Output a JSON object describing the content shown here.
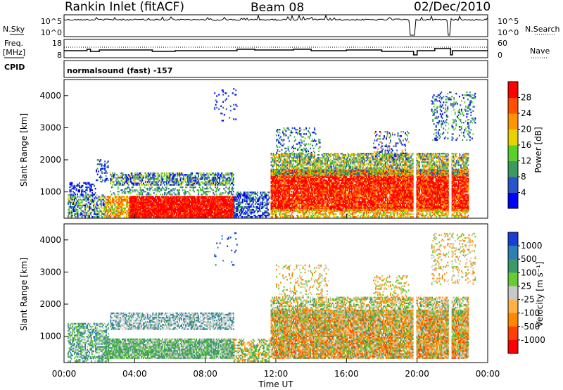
{
  "header": {
    "title": "Rankin Inlet (fitACF)",
    "beam": "Beam 08",
    "date": "02/Dec/2010"
  },
  "noise_panel": {
    "left_label": "N.Sky",
    "right_label": "N.Search",
    "tick_top": "10^5",
    "tick_bottom": "10^0",
    "tick_top_right": "10^5",
    "tick_bottom_right": "10^0"
  },
  "freq_panel": {
    "left_label": "Freq.",
    "left_unit": "[MHz]",
    "right_label": "Nave",
    "left_ticks": [
      "18",
      "8"
    ],
    "right_ticks": [
      "60",
      "0"
    ]
  },
  "cpid": {
    "label": "CPID",
    "text": "normalsound (fast) -157"
  },
  "chart_data": [
    {
      "type": "heatmap",
      "panel": "power",
      "ylabel": "Slant Range [km]",
      "colorbar_label": "Power [dB]",
      "ylim": [
        180,
        4500
      ],
      "y_ticks": [
        "1000",
        "2000",
        "3000",
        "4000"
      ],
      "colorbar_ticks": [
        "4",
        "8",
        "12",
        "16",
        "20",
        "24",
        "28"
      ],
      "colors": [
        "#0000ff",
        "#2a55c8",
        "#3c9a5e",
        "#5ad02a",
        "#e8d200",
        "#ff9500",
        "#ff5000",
        "#ff0000"
      ]
    },
    {
      "type": "heatmap",
      "panel": "velocity",
      "ylabel": "Slant Range [km]",
      "colorbar_label": "Velocity  [m s⁻¹]",
      "ylim": [
        180,
        4500
      ],
      "y_ticks": [
        "1000",
        "2000",
        "3000",
        "4000"
      ],
      "colorbar_ticks": [
        "1000",
        "500",
        "100",
        "25",
        "-25",
        "-100",
        "-500",
        "-1000"
      ],
      "colors": [
        "#1a3fd6",
        "#2e7fb4",
        "#3c9a6a",
        "#66cc33",
        "#c8c8c8",
        "#ffb24a",
        "#ff8800",
        "#ff4000",
        "#ff0000"
      ]
    }
  ],
  "x_axis": {
    "label": "Time UT",
    "ticks": [
      "00:00",
      "04:00",
      "08:00",
      "12:00",
      "16:00",
      "20:00",
      "00:00"
    ]
  }
}
